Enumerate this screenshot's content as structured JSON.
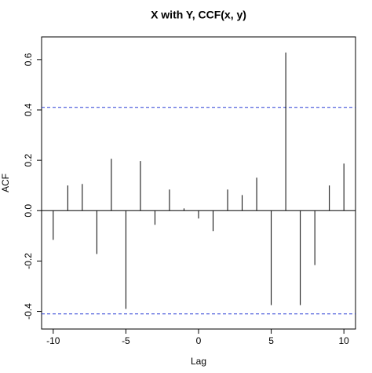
{
  "chart_data": {
    "type": "stem",
    "title": "X with Y, CCF(x, y)",
    "x_label": "Lag",
    "y_label": "ACF",
    "x": [
      -10,
      -9,
      -8,
      -7,
      -6,
      -5,
      -4,
      -3,
      -2,
      -1,
      0,
      1,
      2,
      3,
      4,
      5,
      6,
      7,
      8,
      9,
      10
    ],
    "values": [
      -0.116,
      0.1,
      0.106,
      -0.172,
      0.206,
      -0.39,
      0.197,
      -0.056,
      0.084,
      0.009,
      -0.031,
      -0.081,
      0.084,
      0.062,
      0.131,
      -0.375,
      0.628,
      -0.375,
      -0.216,
      0.1,
      0.187
    ],
    "color": "#000000",
    "confidence_lines": [
      0.41,
      -0.41
    ],
    "confidence_color": "#2a3fd6",
    "xlim": [
      -10.8,
      10.8
    ],
    "xticks": [
      -10,
      -5,
      0,
      5,
      10
    ],
    "ylim": [
      -0.47,
      0.69
    ],
    "yticks": [
      -0.4,
      -0.2,
      {
        "value": 0,
        "label": "0.0"
      },
      0.2,
      0.4,
      0.6
    ]
  }
}
